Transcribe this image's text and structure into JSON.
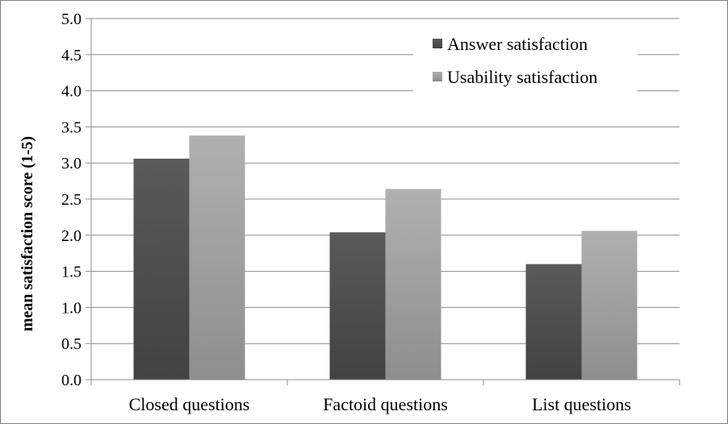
{
  "chart_data": {
    "type": "bar",
    "title": "",
    "xlabel": "",
    "ylabel": "mean satisfaction score (1-5)",
    "categories": [
      "Closed questions",
      "Factoid questions",
      "List questions"
    ],
    "series": [
      {
        "name": "Answer satisfaction",
        "values": [
          3.06,
          2.04,
          1.6
        ],
        "color": "#555555"
      },
      {
        "name": "Usability satisfaction",
        "values": [
          3.38,
          2.64,
          2.06
        ],
        "color": "#a6a6a6"
      }
    ],
    "ylim": [
      0,
      5
    ],
    "yticks": [
      "0.0",
      "0.5",
      "1.0",
      "1.5",
      "2.0",
      "2.5",
      "3.0",
      "3.5",
      "4.0",
      "4.5",
      "5.0"
    ],
    "grid": true,
    "legend_position": "top-right"
  }
}
